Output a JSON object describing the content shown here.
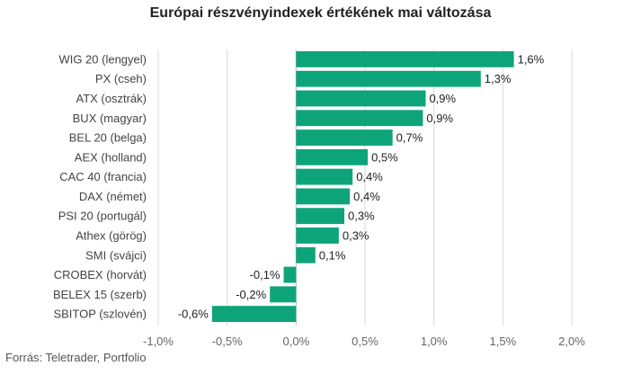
{
  "chart_data": {
    "type": "bar",
    "orientation": "horizontal",
    "title": "Európai részvényindexek értékének mai változása",
    "categories": [
      "WIG 20 (lengyel)",
      "PX (cseh)",
      "ATX (osztrák)",
      "BUX (magyar)",
      "BEL 20 (belga)",
      "AEX (holland)",
      "CAC 40 (francia)",
      "DAX (német)",
      "PSI 20 (portugál)",
      "Athex (görög)",
      "SMI (svájci)",
      "CROBEX (horvát)",
      "BELEX 15 (szerb)",
      "SBITOP (szlovén)"
    ],
    "values": [
      1.58,
      1.34,
      0.94,
      0.92,
      0.7,
      0.52,
      0.41,
      0.39,
      0.35,
      0.31,
      0.14,
      -0.09,
      -0.19,
      -0.61
    ],
    "value_labels": [
      "1,6%",
      "1,3%",
      "0,9%",
      "0,9%",
      "0,7%",
      "0,5%",
      "0,4%",
      "0,4%",
      "0,3%",
      "0,3%",
      "0,1%",
      "-0,1%",
      "-0,2%",
      "-0,6%"
    ],
    "xlim": [
      -1.0,
      2.0
    ],
    "x_ticks": [
      -1.0,
      -0.5,
      0.0,
      0.5,
      1.0,
      1.5,
      2.0
    ],
    "x_tick_labels": [
      "-1,0%",
      "-0,5%",
      "0,0%",
      "0,5%",
      "1,0%",
      "1,5%",
      "2,0%"
    ],
    "grid": "vertical",
    "bar_color": "#0ea47a"
  },
  "source": "Forrás: Teletrader, Portfolio"
}
